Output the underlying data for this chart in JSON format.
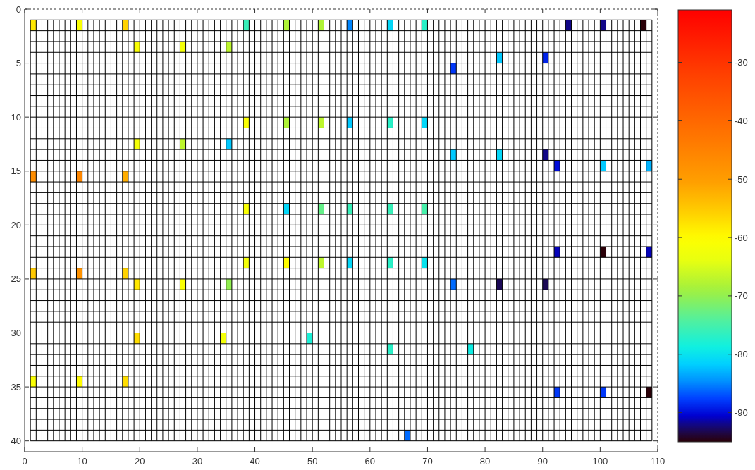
{
  "chart_data": {
    "type": "scatter",
    "marker": "square",
    "grid": true,
    "xlim": [
      0,
      110
    ],
    "xticks": [
      0,
      10,
      20,
      30,
      40,
      50,
      60,
      70,
      80,
      90,
      100,
      110
    ],
    "ylim": [
      41,
      0
    ],
    "yticks": [
      0,
      5,
      10,
      15,
      20,
      25,
      30,
      35,
      40
    ],
    "clim": [
      -95,
      -21
    ],
    "cticks": [
      -90,
      -80,
      -70,
      -60,
      -50,
      -40,
      -30
    ],
    "x": [
      1.5,
      9.5,
      17.5,
      38.5,
      45.5,
      51.5,
      56.5,
      63.5,
      69.5,
      94.5,
      100.5,
      107.5,
      19.5,
      27.5,
      35.5,
      82.5,
      90.5,
      74.5,
      38.5,
      45.5,
      51.5,
      56.5,
      63.5,
      69.5,
      19.5,
      27.5,
      35.5,
      74.5,
      82.5,
      90.5,
      92.5,
      100.5,
      108.5,
      1.5,
      9.5,
      17.5,
      38.5,
      45.5,
      51.5,
      56.5,
      63.5,
      69.5,
      92.5,
      100.5,
      108.5,
      38.5,
      45.5,
      51.5,
      56.5,
      63.5,
      69.5,
      1.5,
      9.5,
      17.5,
      19.5,
      27.5,
      35.5,
      74.5,
      82.5,
      90.5,
      19.5,
      34.5,
      49.5,
      63.5,
      77.5,
      1.5,
      9.5,
      17.5,
      92.5,
      100.5,
      108.5,
      66.5
    ],
    "values": [
      1.5,
      1.5,
      1.5,
      1.5,
      1.5,
      1.5,
      1.5,
      1.5,
      1.5,
      1.5,
      1.5,
      1.5,
      3.5,
      3.5,
      3.5,
      4.5,
      4.5,
      5.5,
      10.5,
      10.5,
      10.5,
      10.5,
      10.5,
      10.5,
      12.5,
      12.5,
      12.5,
      13.5,
      13.5,
      13.5,
      14.5,
      14.5,
      14.5,
      15.5,
      15.5,
      15.5,
      18.5,
      18.5,
      18.5,
      18.5,
      18.5,
      18.5,
      22.5,
      22.5,
      22.5,
      23.5,
      23.5,
      23.5,
      23.5,
      23.5,
      23.5,
      24.5,
      24.5,
      24.5,
      25.5,
      25.5,
      25.5,
      25.5,
      25.5,
      25.5,
      30.5,
      30.5,
      30.5,
      31.5,
      31.5,
      34.5,
      34.5,
      34.5,
      35.5,
      35.5,
      35.5,
      39.5
    ],
    "cvalues": [
      -58,
      -61,
      -56,
      -76,
      -68,
      -68,
      -85,
      -81,
      -77,
      -92,
      -92,
      -95,
      -61,
      -62,
      -67,
      -82,
      -89,
      -88,
      -61,
      -68,
      -67,
      -82,
      -77,
      -81,
      -62,
      -67,
      -82,
      -82,
      -81,
      -92,
      -90,
      -82,
      -83,
      -47,
      -46,
      -52,
      -61,
      -81,
      -73,
      -76,
      -76,
      -75,
      -91,
      -95,
      -91,
      -62,
      -60,
      -67,
      -81,
      -77,
      -80,
      -55,
      -48,
      -56,
      -58,
      -61,
      -70,
      -86,
      -93,
      -93,
      -57,
      -62,
      -78,
      -77,
      -79,
      -61,
      -60,
      -57,
      -88,
      -88,
      -95,
      -86
    ]
  }
}
